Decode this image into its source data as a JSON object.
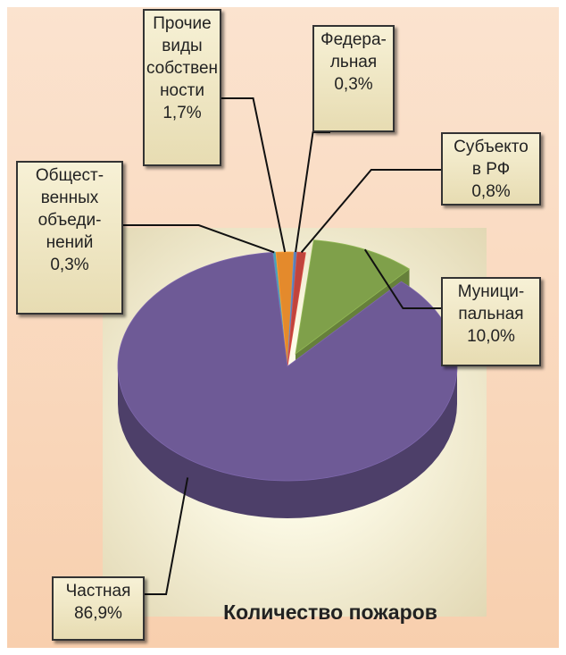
{
  "chart_data": {
    "type": "pie",
    "title": "Количество пожаров",
    "categories": [
      "Общест-\nвенных\nобъеди-\nнений",
      "Прочие\nвиды\nсобствен\nности",
      "Федера-\nльная",
      "Субъекто\nв  РФ",
      "Муници-\nпальная",
      "Частная"
    ],
    "values": [
      0.3,
      1.7,
      0.3,
      0.8,
      10.0,
      86.9
    ],
    "value_labels": [
      "0,3%",
      "1,7%",
      "0,3%",
      "0,8%",
      "10,0%",
      "86,9%"
    ],
    "colors": [
      "#4aa3b8",
      "#e48a2c",
      "#5b7fb5",
      "#c0443c",
      "#7fa04a",
      "#6e5a96"
    ]
  }
}
